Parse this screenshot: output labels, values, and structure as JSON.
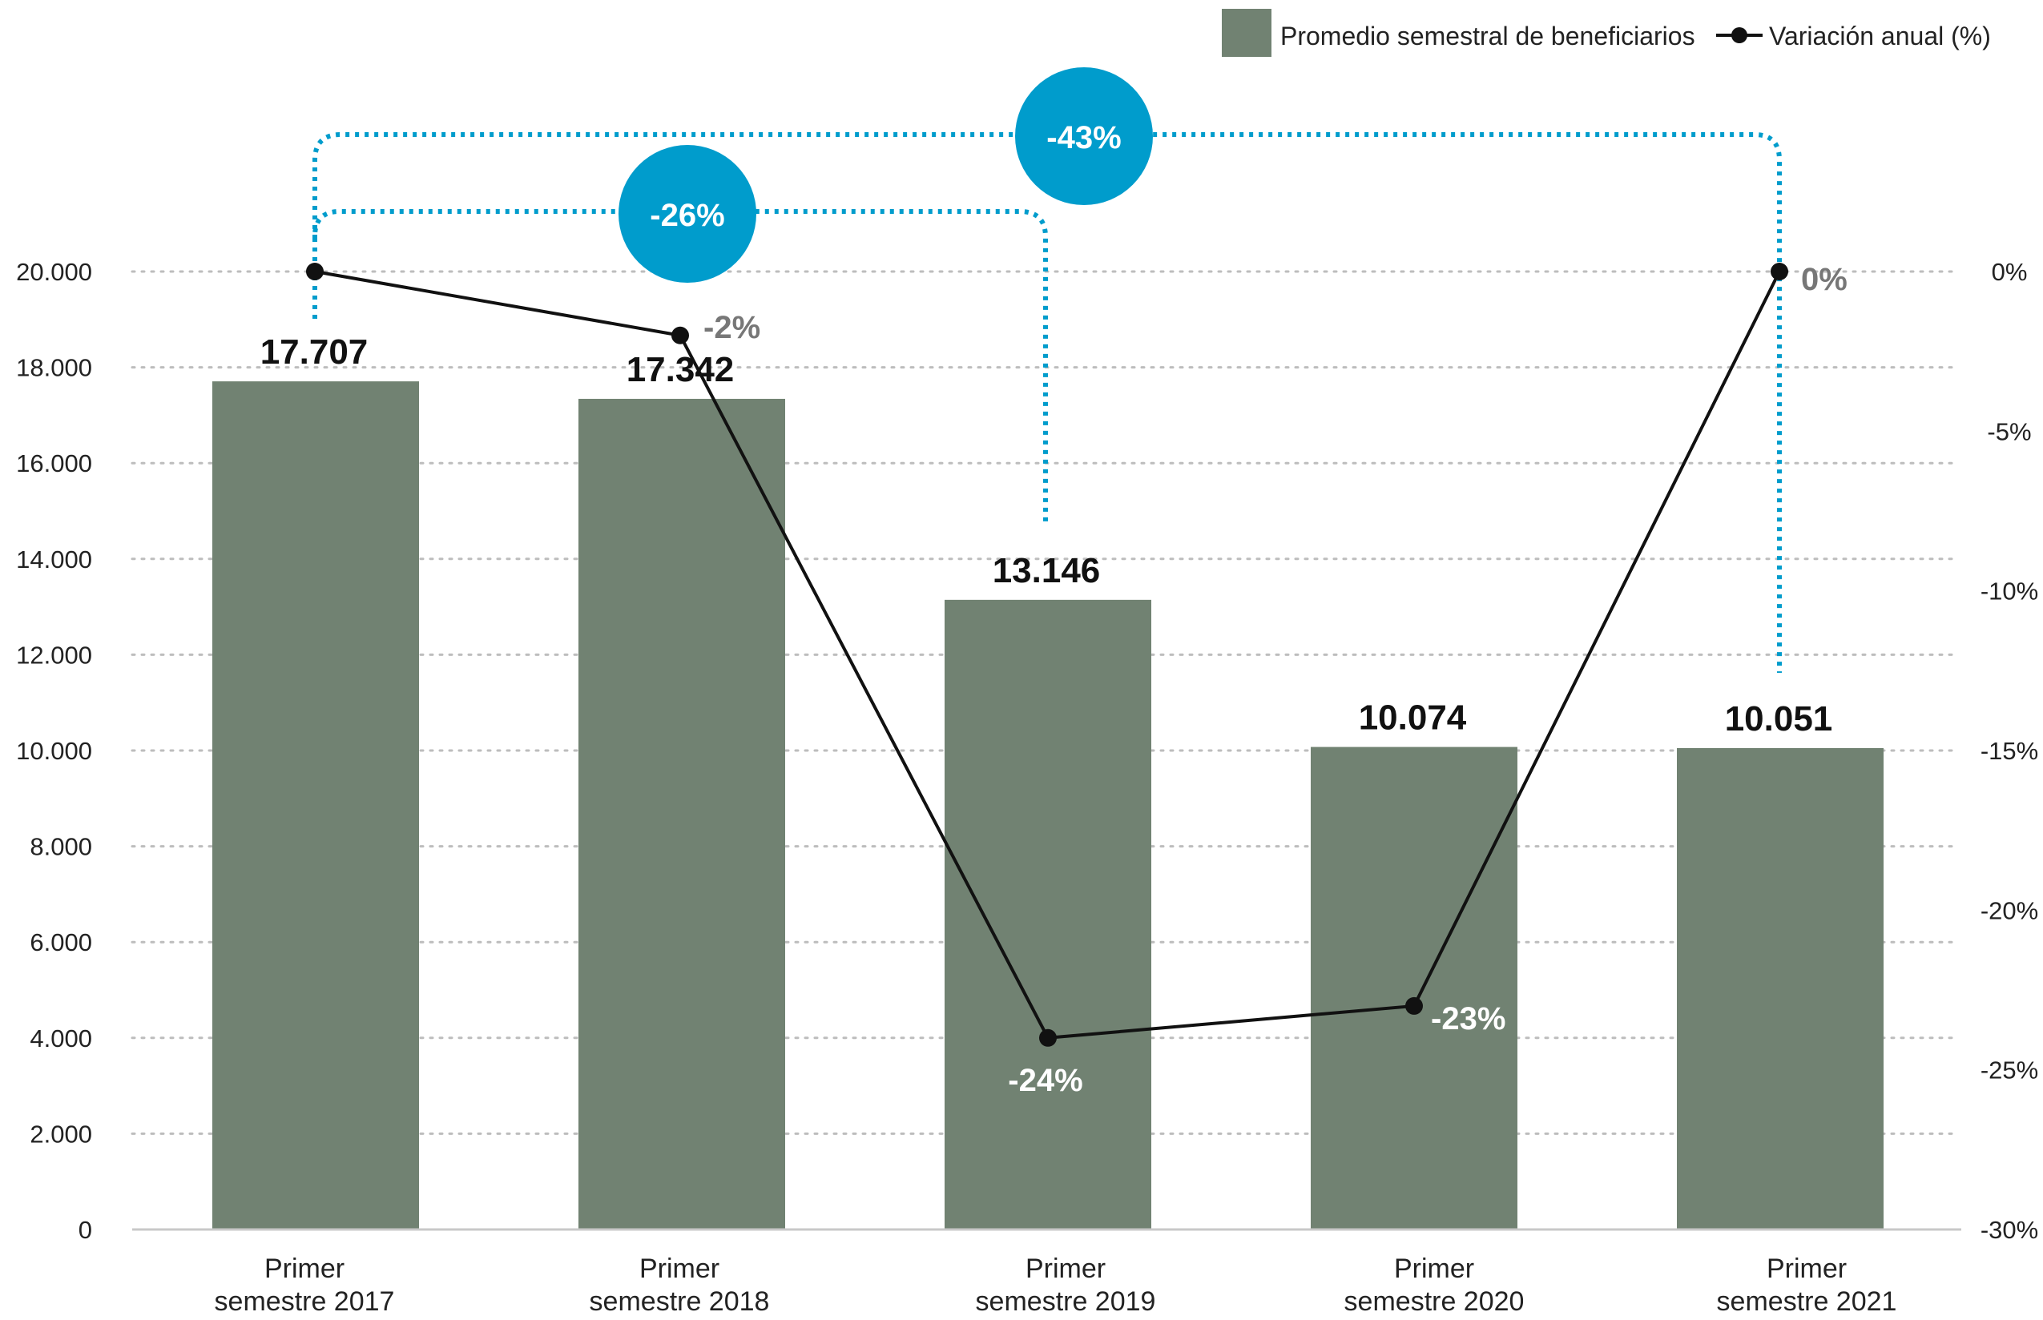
{
  "chart_data": {
    "type": "bar",
    "categories": [
      [
        "Primer",
        "semestre 2017"
      ],
      [
        "Primer",
        "semestre 2018"
      ],
      [
        "Primer",
        "semestre 2019"
      ],
      [
        "Primer",
        "semestre 2020"
      ],
      [
        "Primer",
        "semestre 2021"
      ]
    ],
    "series": [
      {
        "name": "Promedio semestral de beneficiarios",
        "type": "bar",
        "axis": "left",
        "values": [
          17707,
          17342,
          13146,
          10074,
          10051
        ],
        "labels": [
          "17.707",
          "17.342",
          "13.146",
          "10.074",
          "10.051"
        ],
        "color": "#718272"
      },
      {
        "name": "Variación anual (%)",
        "type": "line",
        "axis": "right",
        "values": [
          0,
          -2,
          -24,
          -23,
          0
        ],
        "labels": [
          "",
          "-2%",
          "-24%",
          "-23%",
          "0%"
        ],
        "color": "#111111"
      }
    ],
    "left_axis": {
      "ylim": [
        0,
        20000
      ],
      "ticks": [
        0,
        2000,
        4000,
        6000,
        8000,
        10000,
        12000,
        14000,
        16000,
        18000,
        20000
      ],
      "tick_labels": [
        "0",
        "2.000",
        "4.000",
        "6.000",
        "8.000",
        "10.000",
        "12.000",
        "14.000",
        "16.000",
        "18.000",
        "20.000"
      ]
    },
    "right_axis": {
      "ylim": [
        -30,
        0
      ],
      "ticks": [
        0,
        -5,
        -10,
        -15,
        -20,
        -25,
        -30
      ],
      "tick_labels": [
        "0%",
        "-5%",
        "-10%",
        "-15%",
        "-20%",
        "-25%",
        "-30%"
      ]
    },
    "grid": true,
    "legend_position": "top-right",
    "annotations": [
      {
        "from": 0,
        "to": 2,
        "label": "-26%",
        "color": "#009ccc"
      },
      {
        "from": 0,
        "to": 4,
        "label": "-43%",
        "color": "#009ccc"
      }
    ]
  }
}
